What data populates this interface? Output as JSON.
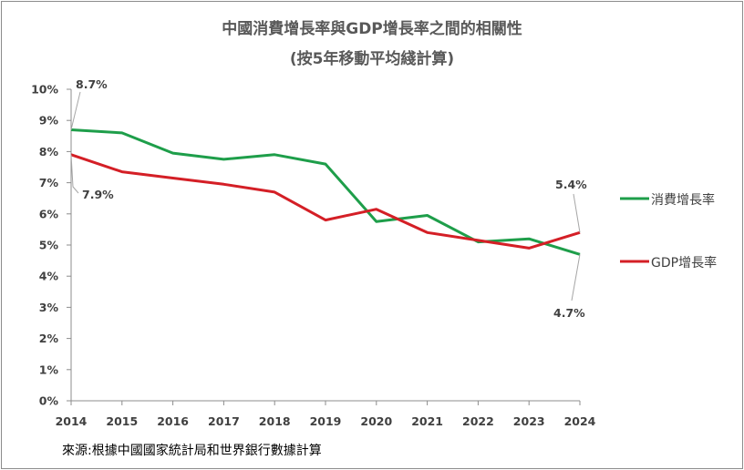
{
  "chart_data": {
    "type": "line",
    "title": "中國消費增長率與GDP增長率之間的相關性",
    "subtitle": "(按5年移動平均綫計算)",
    "x": [
      "2014",
      "2015",
      "2016",
      "2017",
      "2018",
      "2019",
      "2020",
      "2021",
      "2022",
      "2023",
      "2024"
    ],
    "yticks": [
      "0%",
      "1%",
      "2%",
      "3%",
      "4%",
      "5%",
      "6%",
      "7%",
      "8%",
      "9%",
      "10%"
    ],
    "ylim": [
      0,
      10
    ],
    "grid": false,
    "legend_position": "right",
    "series": [
      {
        "name": "消費增長率",
        "color": "#1e9e4a",
        "values": [
          8.7,
          8.6,
          7.95,
          7.75,
          7.9,
          7.6,
          5.75,
          5.95,
          5.1,
          5.2,
          4.7
        ]
      },
      {
        "name": "GDP增長率",
        "color": "#d41f26",
        "values": [
          7.9,
          7.35,
          7.15,
          6.95,
          6.7,
          5.8,
          6.15,
          5.4,
          5.15,
          4.9,
          5.4
        ]
      }
    ],
    "annotations": [
      {
        "text": "8.7%"
      },
      {
        "text": "7.9%"
      },
      {
        "text": "5.4%"
      },
      {
        "text": "4.7%"
      }
    ]
  },
  "source": "來源:根據中國國家統計局和世界銀行數據計算"
}
